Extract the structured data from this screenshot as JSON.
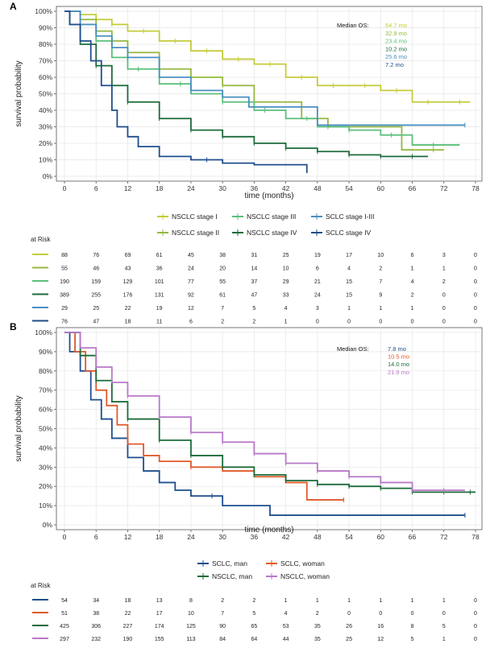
{
  "panels": [
    {
      "letter": "A",
      "xlabel": "time (months)",
      "ylabel": "survival probability",
      "median_os_label": "Median OS:",
      "risk_title": "at Risk",
      "chart_data": {
        "type": "line",
        "step": true,
        "xlim": [
          0,
          78
        ],
        "ylim": [
          0,
          100
        ],
        "x_ticks": [
          0,
          6,
          12,
          18,
          24,
          30,
          36,
          42,
          48,
          54,
          60,
          66,
          72,
          78
        ],
        "y_ticks": [
          "0%",
          "10%",
          "20%",
          "30%",
          "40%",
          "50%",
          "60%",
          "70%",
          "80%",
          "90%",
          "100%"
        ],
        "grid": true,
        "legend_position": "bottom",
        "series": [
          {
            "name": "NSCLC stage I",
            "color": "#c4cc3a",
            "median": "64.7 mo",
            "x": [
              0,
              3,
              6,
              9,
              12,
              18,
              24,
              30,
              36,
              42,
              48,
              54,
              60,
              66,
              72,
              77
            ],
            "y": [
              100,
              98,
              95,
              92,
              88,
              82,
              76,
              71,
              68,
              60,
              55,
              55,
              52,
              45,
              45,
              45
            ],
            "censored": [
              3,
              9,
              15,
              21,
              27,
              33,
              39,
              45,
              51,
              57,
              63,
              69,
              75
            ]
          },
          {
            "name": "NSCLC stage II",
            "color": "#95b93f",
            "median": "32.9 mo",
            "x": [
              0,
              3,
              6,
              9,
              12,
              18,
              24,
              30,
              36,
              40,
              45,
              50,
              62,
              64,
              72
            ],
            "y": [
              100,
              95,
              88,
              82,
              75,
              65,
              60,
              55,
              45,
              45,
              35,
              30,
              30,
              16,
              16
            ],
            "censored": [
              6,
              18,
              30,
              50,
              70
            ]
          },
          {
            "name": "NSCLC stage III",
            "color": "#5bbf7b",
            "median": "23.4 mo",
            "x": [
              0,
              3,
              6,
              9,
              12,
              18,
              24,
              30,
              36,
              42,
              48,
              54,
              60,
              66,
              75
            ],
            "y": [
              100,
              92,
              82,
              72,
              65,
              56,
              50,
              45,
              40,
              35,
              30,
              28,
              25,
              19,
              19
            ],
            "censored": [
              6,
              14,
              22,
              30,
              38,
              46,
              54,
              62,
              70
            ]
          },
          {
            "name": "NSCLC stage IV",
            "color": "#1c6b3a",
            "median": "10.2 mo",
            "x": [
              0,
              1,
              3,
              6,
              9,
              12,
              18,
              24,
              30,
              36,
              42,
              48,
              54,
              60,
              66,
              69
            ],
            "y": [
              100,
              92,
              80,
              67,
              55,
              45,
              35,
              28,
              24,
              20,
              17,
              15,
              13,
              12,
              12,
              12
            ],
            "censored": [
              6,
              12,
              18,
              24,
              30,
              36,
              42,
              48,
              54,
              60,
              66
            ]
          },
          {
            "name": "SCLC stage I-III",
            "color": "#4a8fc1",
            "median": "25.6 mo",
            "x": [
              0,
              3,
              6,
              9,
              12,
              18,
              24,
              30,
              35,
              48,
              76
            ],
            "y": [
              100,
              92,
              85,
              78,
              72,
              60,
              52,
              48,
              42,
              31,
              31
            ],
            "censored": [
              12,
              24,
              76
            ]
          },
          {
            "name": "SCLC stage IV",
            "color": "#1f4e8c",
            "median": "7.2 mo",
            "x": [
              0,
              1,
              3,
              5,
              7,
              9,
              10,
              12,
              14,
              18,
              24,
              30,
              36,
              46
            ],
            "y": [
              100,
              92,
              82,
              70,
              55,
              40,
              30,
              24,
              18,
              12,
              10,
              8,
              7,
              2
            ],
            "censored": [
              27
            ]
          }
        ],
        "risk_table": [
          [
            88,
            76,
            69,
            61,
            45,
            38,
            31,
            25,
            19,
            17,
            10,
            6,
            3,
            0
          ],
          [
            55,
            46,
            43,
            36,
            24,
            20,
            14,
            10,
            6,
            4,
            2,
            1,
            1,
            0
          ],
          [
            190,
            159,
            129,
            101,
            77,
            55,
            37,
            29,
            21,
            15,
            7,
            4,
            2,
            0
          ],
          [
            389,
            255,
            176,
            131,
            92,
            61,
            47,
            33,
            24,
            15,
            9,
            2,
            0,
            0
          ],
          [
            29,
            25,
            22,
            19,
            12,
            7,
            5,
            4,
            3,
            1,
            1,
            1,
            0,
            0
          ],
          [
            76,
            47,
            18,
            11,
            6,
            2,
            2,
            1,
            0,
            0,
            0,
            0,
            0,
            0
          ]
        ]
      }
    },
    {
      "letter": "B",
      "xlabel": "time (months)",
      "ylabel": "survival probability",
      "median_os_label": "Median OS:",
      "risk_title": "at Risk",
      "chart_data": {
        "type": "line",
        "step": true,
        "xlim": [
          0,
          78
        ],
        "ylim": [
          0,
          100
        ],
        "x_ticks": [
          0,
          6,
          12,
          18,
          24,
          30,
          36,
          42,
          48,
          54,
          60,
          66,
          72,
          78
        ],
        "y_ticks": [
          "0%",
          "10%",
          "20%",
          "30%",
          "40%",
          "50%",
          "60%",
          "70%",
          "80%",
          "90%",
          "100%"
        ],
        "grid": true,
        "legend_position": "bottom",
        "series": [
          {
            "name": "SCLC, man",
            "color": "#1f4e8c",
            "median": "7.8 mo",
            "x": [
              0,
              1,
              3,
              5,
              7,
              9,
              12,
              15,
              18,
              21,
              24,
              30,
              39,
              76
            ],
            "y": [
              100,
              90,
              80,
              65,
              55,
              45,
              35,
              28,
              22,
              18,
              15,
              10,
              5,
              5
            ],
            "censored": [
              28,
              76
            ]
          },
          {
            "name": "SCLC, woman",
            "color": "#e05a2b",
            "median": "10.5 mo",
            "x": [
              0,
              2,
              4,
              6,
              8,
              10,
              12,
              15,
              18,
              24,
              30,
              36,
              42,
              46,
              53
            ],
            "y": [
              100,
              90,
              80,
              70,
              62,
              52,
              42,
              36,
              33,
              30,
              28,
              25,
              22,
              13,
              13
            ],
            "censored": [
              24,
              53
            ]
          },
          {
            "name": "NSCLC, man",
            "color": "#1c6b3a",
            "median": "14.0 mo",
            "x": [
              0,
              3,
              6,
              9,
              12,
              18,
              24,
              30,
              36,
              42,
              48,
              54,
              60,
              66,
              78
            ],
            "y": [
              100,
              88,
              75,
              64,
              55,
              44,
              36,
              30,
              26,
              23,
              21,
              20,
              19,
              17,
              17
            ],
            "censored": [
              6,
              12,
              18,
              24,
              30,
              36,
              42,
              48,
              54,
              60,
              66,
              72,
              77
            ]
          },
          {
            "name": "NSCLC, woman",
            "color": "#b878c8",
            "median": "21.9 mo",
            "x": [
              0,
              3,
              6,
              9,
              12,
              18,
              24,
              30,
              36,
              42,
              48,
              54,
              60,
              66,
              76
            ],
            "y": [
              100,
              92,
              82,
              74,
              67,
              56,
              48,
              43,
              37,
              32,
              28,
              25,
              22,
              18,
              18
            ],
            "censored": [
              6,
              12,
              18,
              24,
              30,
              36,
              42,
              48,
              54,
              60,
              66,
              72
            ]
          }
        ],
        "risk_table": [
          [
            54,
            34,
            18,
            13,
            8,
            2,
            2,
            1,
            1,
            1,
            1,
            1,
            1,
            0
          ],
          [
            51,
            38,
            22,
            17,
            10,
            7,
            5,
            4,
            2,
            0,
            0,
            0,
            0,
            0
          ],
          [
            425,
            306,
            227,
            174,
            125,
            90,
            65,
            53,
            35,
            26,
            16,
            8,
            5,
            0
          ],
          [
            297,
            232,
            190,
            155,
            113,
            84,
            64,
            44,
            35,
            25,
            12,
            5,
            1,
            0
          ]
        ]
      }
    }
  ]
}
